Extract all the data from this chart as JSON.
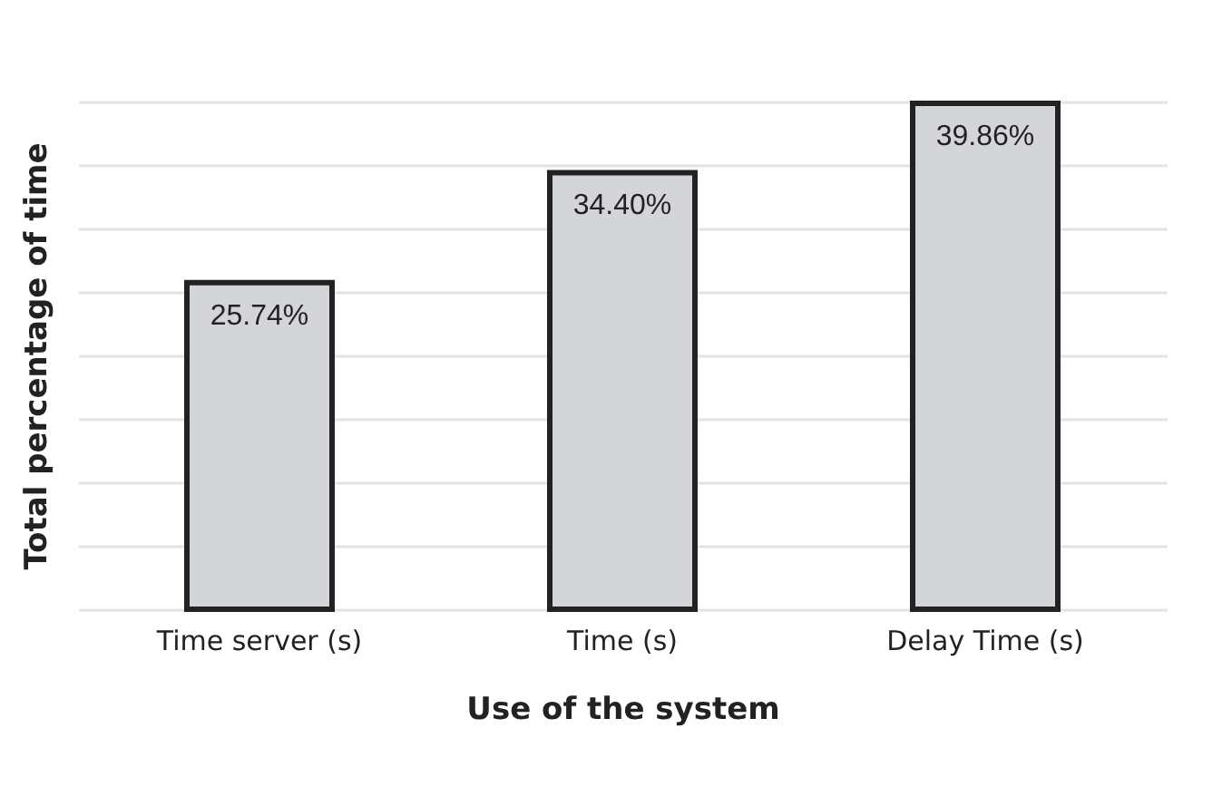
{
  "chart_data": {
    "type": "bar",
    "xlabel": "Use of the system",
    "ylabel": "Total percentage of time",
    "categories": [
      "Time server (s)",
      "Time (s)",
      "Delay Time (s)"
    ],
    "values": [
      25.74,
      34.4,
      39.86
    ],
    "value_labels": [
      "25.74%",
      "34.40%",
      "39.86%"
    ],
    "color": "#d4d5d8",
    "grid": "y",
    "tick_labels": "x"
  }
}
